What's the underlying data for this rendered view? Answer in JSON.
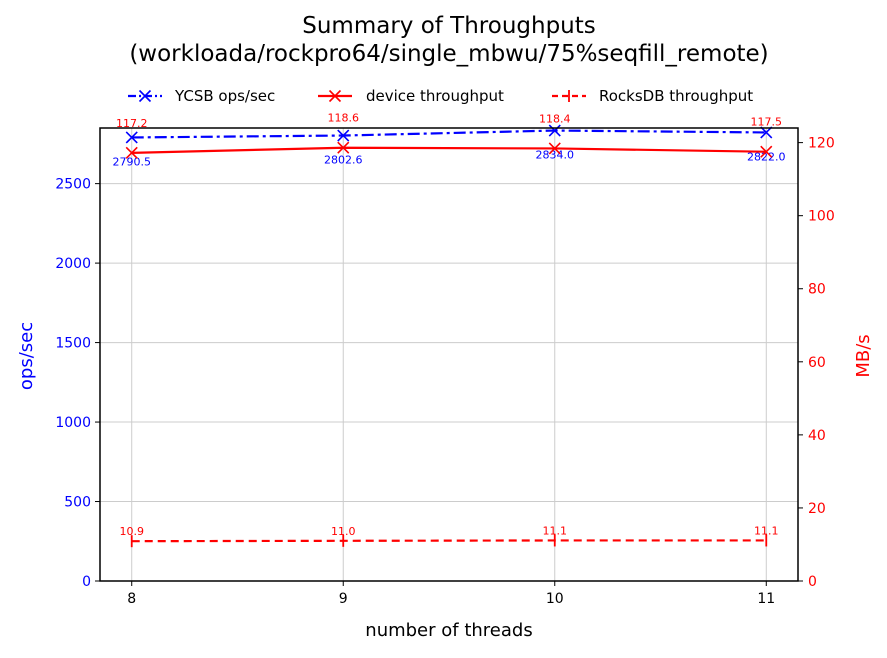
{
  "chart_data": {
    "type": "line",
    "title_line1": "Summary of Throughputs",
    "title_line2": "(workloada/rockpro64/single_mbwu/75%seqfill_remote)",
    "xlabel": "number of threads",
    "ylabel_left": "ops/sec",
    "ylabel_right": "MB/s",
    "x": [
      8,
      9,
      10,
      11
    ],
    "x_ticks": [
      "8",
      "9",
      "10",
      "11"
    ],
    "xlim": [
      7.85,
      11.15
    ],
    "ylim_left": [
      0,
      2850
    ],
    "ylim_right": [
      0,
      124
    ],
    "yticks_left": [
      "0",
      "500",
      "1000",
      "1500",
      "2000",
      "2500"
    ],
    "yticks_right": [
      "0",
      "20",
      "40",
      "60",
      "80",
      "100",
      "120"
    ],
    "grid": true,
    "legend_position": "top",
    "colors": {
      "left_axis": "#0000ff",
      "right_axis": "#ff0000",
      "grid": "#cccccc"
    },
    "series": [
      {
        "name": "YCSB ops/sec",
        "axis": "left",
        "color": "#0000ff",
        "line_style": "dash-dot",
        "marker": "x",
        "values": [
          2790.5,
          2802.6,
          2834.0,
          2822.0
        ],
        "labels": [
          "2790.5",
          "2802.6",
          "2834.0",
          "2822.0"
        ]
      },
      {
        "name": "device throughput",
        "axis": "right",
        "color": "#ff0000",
        "line_style": "solid",
        "marker": "x",
        "values": [
          117.2,
          118.6,
          118.4,
          117.5
        ],
        "labels": [
          "117.2",
          "118.6",
          "118.4",
          "117.5"
        ]
      },
      {
        "name": "RocksDB throughput",
        "axis": "right",
        "color": "#ff0000",
        "line_style": "dashed",
        "marker": "vertical-tick",
        "values": [
          10.9,
          11.0,
          11.1,
          11.1
        ],
        "labels": [
          "10.9",
          "11.0",
          "11.1",
          "11.1"
        ]
      }
    ]
  }
}
